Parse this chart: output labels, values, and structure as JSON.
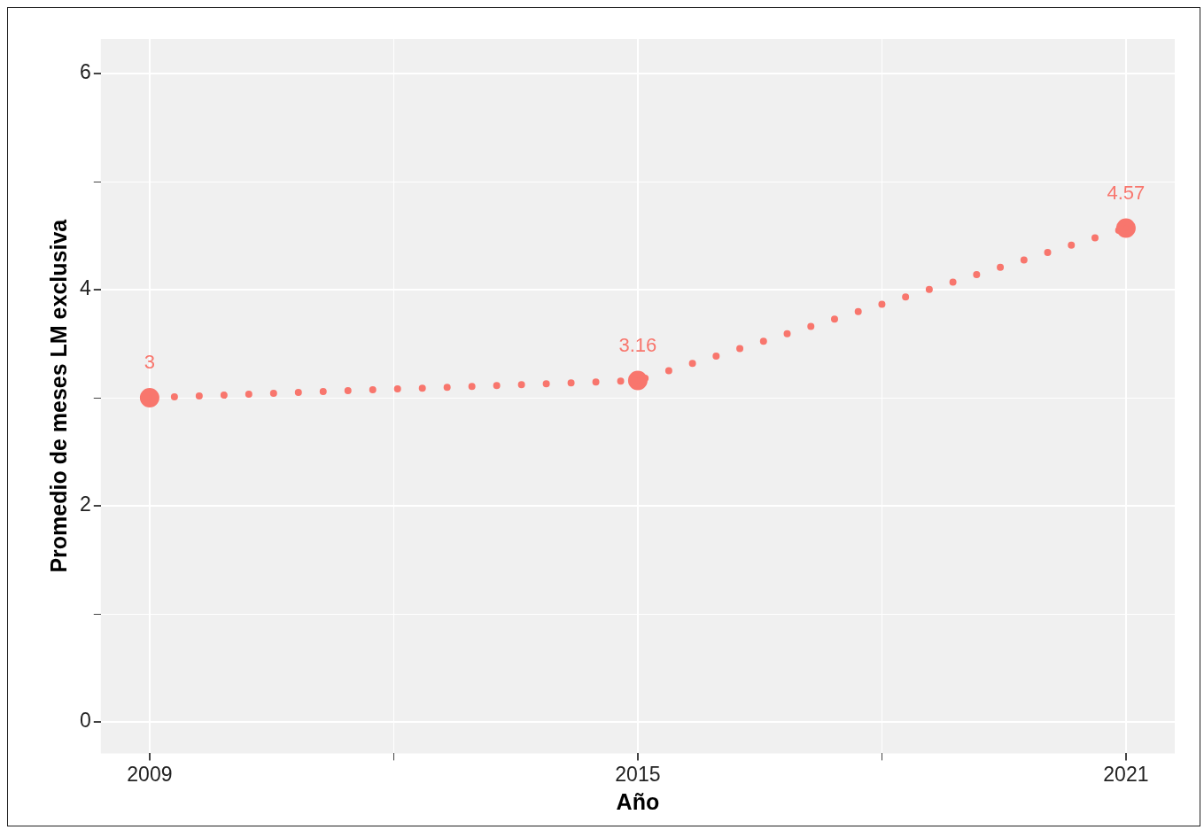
{
  "chart_data": {
    "type": "line",
    "xlabel": "Año",
    "ylabel": "Promedio de meses LM exclusiva",
    "x": [
      2009,
      2015,
      2021
    ],
    "series": [
      {
        "color": "#f8766d",
        "values": [
          3,
          3.16,
          4.57
        ]
      }
    ],
    "xlim": [
      2008.4,
      2021.6
    ],
    "ylim": [
      -0.29,
      6.32
    ],
    "xticks": [
      2009,
      {
        "value": 2012,
        "label": null
      },
      2015,
      {
        "value": 2018,
        "label": null
      },
      2021
    ],
    "yticks": [
      0,
      {
        "value": 1,
        "label": null
      },
      2,
      {
        "value": 3,
        "label": null
      },
      4,
      {
        "value": 5,
        "label": null
      },
      6
    ],
    "grid": true,
    "marker": "circle",
    "line_style": "dotted",
    "data_labels": true
  }
}
